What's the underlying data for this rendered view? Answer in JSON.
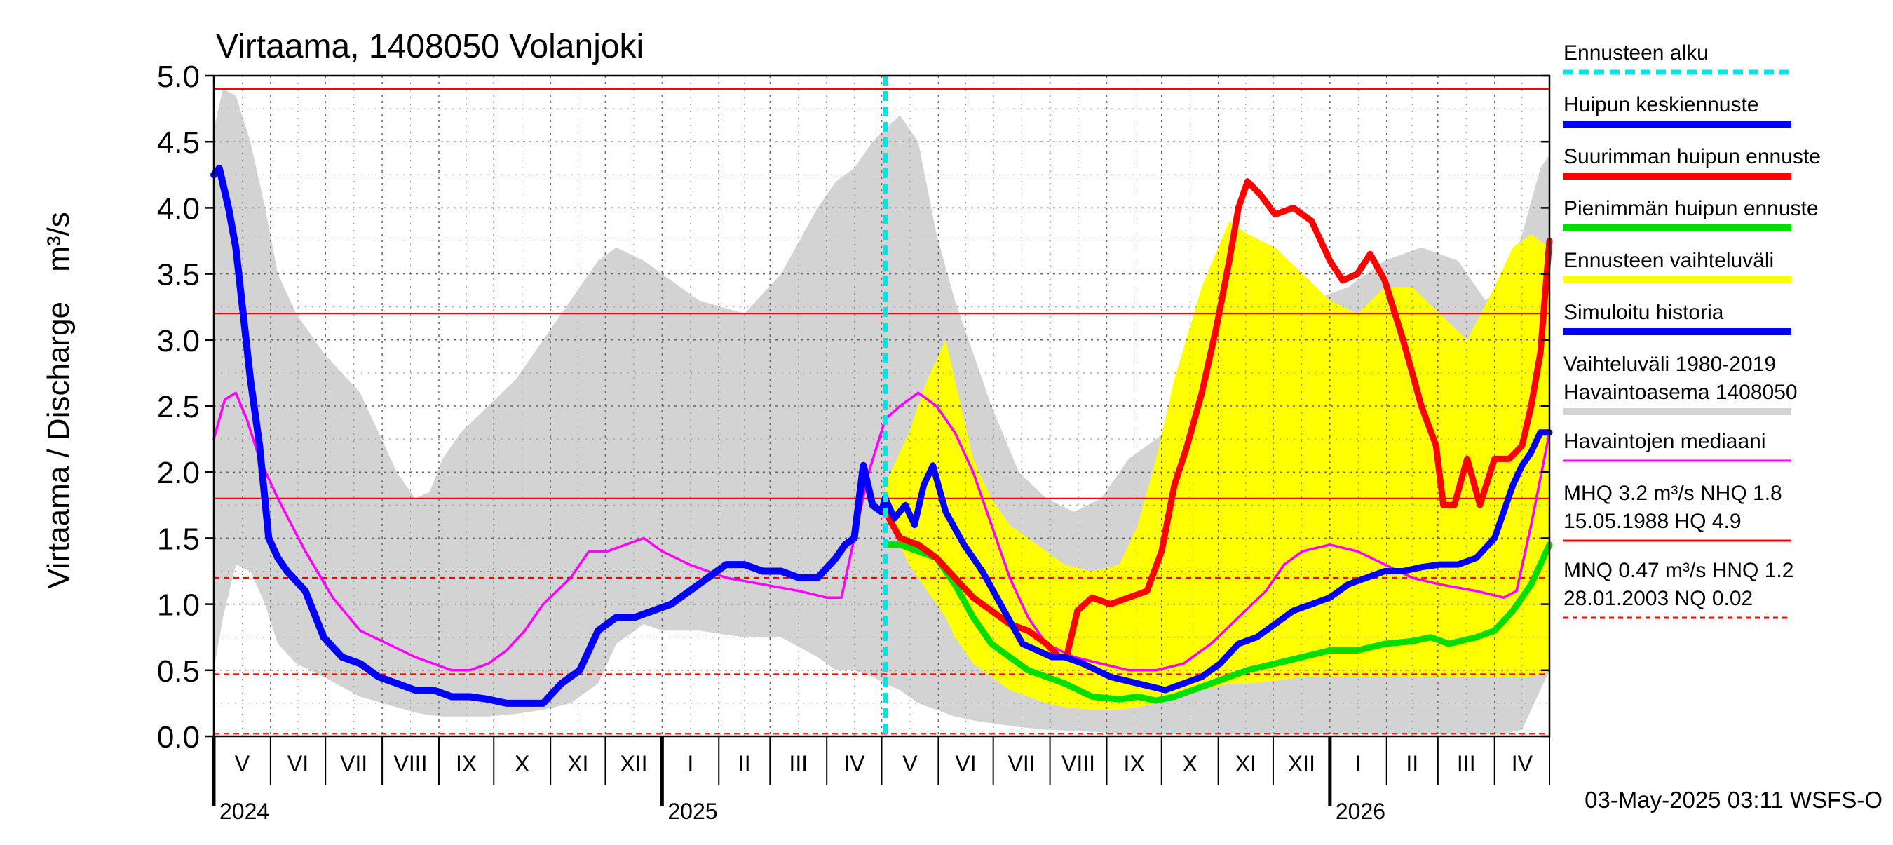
{
  "chart_data": {
    "type": "line",
    "title": "Virtaama, 1408050 Volanjoki",
    "ylabel": "Virtaama / Discharge",
    "yunit": "m³/s",
    "ylim": [
      0,
      5
    ],
    "y_ticks": [
      "0.0",
      "0.5",
      "1.0",
      "1.5",
      "2.0",
      "2.5",
      "3.0",
      "3.5",
      "4.0",
      "4.5",
      "5.0"
    ],
    "x_range_days": [
      0,
      730
    ],
    "months": [
      {
        "label": "V",
        "start": 0,
        "end": 31
      },
      {
        "label": "VI",
        "start": 31,
        "end": 61
      },
      {
        "label": "VII",
        "start": 61,
        "end": 92
      },
      {
        "label": "VIII",
        "start": 92,
        "end": 123
      },
      {
        "label": "IX",
        "start": 123,
        "end": 153
      },
      {
        "label": "X",
        "start": 153,
        "end": 184
      },
      {
        "label": "XI",
        "start": 184,
        "end": 214
      },
      {
        "label": "XII",
        "start": 214,
        "end": 245
      },
      {
        "label": "I",
        "start": 245,
        "end": 276
      },
      {
        "label": "II",
        "start": 276,
        "end": 304
      },
      {
        "label": "III",
        "start": 304,
        "end": 335
      },
      {
        "label": "IV",
        "start": 335,
        "end": 365
      },
      {
        "label": "V",
        "start": 365,
        "end": 396
      },
      {
        "label": "VI",
        "start": 396,
        "end": 426
      },
      {
        "label": "VII",
        "start": 426,
        "end": 457
      },
      {
        "label": "VIII",
        "start": 457,
        "end": 488
      },
      {
        "label": "IX",
        "start": 488,
        "end": 518
      },
      {
        "label": "X",
        "start": 518,
        "end": 549
      },
      {
        "label": "XI",
        "start": 549,
        "end": 579
      },
      {
        "label": "XII",
        "start": 579,
        "end": 610
      },
      {
        "label": "I",
        "start": 610,
        "end": 641
      },
      {
        "label": "II",
        "start": 641,
        "end": 669
      },
      {
        "label": "III",
        "start": 669,
        "end": 700
      },
      {
        "label": "IV",
        "start": 700,
        "end": 730
      }
    ],
    "years": [
      {
        "label": "2024",
        "day": 0
      },
      {
        "label": "2025",
        "day": 245
      },
      {
        "label": "2026",
        "day": 610
      }
    ],
    "forecast_start_day": 367,
    "reference_lines": [
      {
        "name": "HQ",
        "value": 4.9,
        "style": "solid"
      },
      {
        "name": "MHQ",
        "value": 3.2,
        "style": "solid"
      },
      {
        "name": "NHQ",
        "value": 1.8,
        "style": "solid"
      },
      {
        "name": "HNQ",
        "value": 1.2,
        "style": "dashed"
      },
      {
        "name": "MNQ",
        "value": 0.47,
        "style": "dashed"
      },
      {
        "name": "NQ",
        "value": 0.02,
        "style": "dashed"
      }
    ],
    "colors": {
      "historical_range": "#d3d3d3",
      "forecast_range": "#ffff00",
      "simulated": "#0000ff",
      "mean_peak": "#0000ff",
      "max_peak": "#ff0000",
      "min_peak": "#00dd00",
      "median": "#ff00ff",
      "forecast_start": "#00e5e5",
      "reference": "#ff0000"
    },
    "series": [
      {
        "name": "Vaihteluväli 1980-2019",
        "role": "historical_range",
        "x": [
          0,
          5,
          12,
          20,
          28,
          35,
          45,
          60,
          80,
          100,
          110,
          118,
          125,
          135,
          150,
          165,
          180,
          195,
          210,
          220,
          235,
          245,
          265,
          290,
          310,
          330,
          340,
          350,
          360,
          367,
          375,
          385,
          395,
          405,
          415,
          425,
          440,
          455,
          470,
          485,
          500,
          520,
          540,
          560,
          580,
          600,
          620,
          640,
          660,
          680,
          695,
          705,
          715,
          725,
          730
        ],
        "upper": [
          4.6,
          4.9,
          4.85,
          4.5,
          4.0,
          3.5,
          3.2,
          2.9,
          2.6,
          2.0,
          1.8,
          1.85,
          2.1,
          2.3,
          2.5,
          2.7,
          3.0,
          3.3,
          3.6,
          3.7,
          3.6,
          3.5,
          3.3,
          3.2,
          3.5,
          4.0,
          4.2,
          4.3,
          4.5,
          4.6,
          4.7,
          4.5,
          3.8,
          3.3,
          2.9,
          2.5,
          2.0,
          1.8,
          1.7,
          1.8,
          2.1,
          2.3,
          2.5,
          2.7,
          3.0,
          3.3,
          3.4,
          3.6,
          3.7,
          3.6,
          3.3,
          3.4,
          3.8,
          4.3,
          4.4
        ],
        "lower": [
          0.5,
          0.9,
          1.3,
          1.25,
          1.0,
          0.7,
          0.55,
          0.45,
          0.3,
          0.22,
          0.18,
          0.16,
          0.15,
          0.15,
          0.15,
          0.17,
          0.2,
          0.25,
          0.4,
          0.7,
          0.85,
          0.8,
          0.8,
          0.75,
          0.75,
          0.6,
          0.5,
          0.5,
          0.45,
          0.4,
          0.35,
          0.25,
          0.2,
          0.15,
          0.12,
          0.1,
          0.07,
          0.05,
          0.04,
          0.03,
          0.02,
          0.02,
          0.02,
          0.02,
          0.02,
          0.02,
          0.02,
          0.02,
          0.02,
          0.02,
          0.02,
          0.02,
          0.05,
          0.35,
          0.5
        ]
      },
      {
        "name": "Ennusteen vaihteluväli",
        "role": "forecast_range",
        "x": [
          367,
          370,
          380,
          390,
          400,
          405,
          415,
          425,
          435,
          445,
          455,
          465,
          480,
          495,
          505,
          515,
          525,
          540,
          555,
          565,
          580,
          595,
          610,
          625,
          640,
          655,
          670,
          685,
          700,
          710,
          720,
          730
        ],
        "upper": [
          1.9,
          2.0,
          2.3,
          2.7,
          3.0,
          2.7,
          2.1,
          1.8,
          1.6,
          1.5,
          1.4,
          1.3,
          1.25,
          1.3,
          1.6,
          2.1,
          2.7,
          3.4,
          3.9,
          3.8,
          3.7,
          3.5,
          3.3,
          3.2,
          3.4,
          3.4,
          3.2,
          3.0,
          3.4,
          3.7,
          3.8,
          3.7
        ],
        "lower": [
          1.7,
          1.6,
          1.3,
          1.1,
          0.9,
          0.75,
          0.55,
          0.45,
          0.35,
          0.3,
          0.25,
          0.22,
          0.2,
          0.2,
          0.22,
          0.25,
          0.3,
          0.35,
          0.4,
          0.4,
          0.42,
          0.45,
          0.45,
          0.45,
          0.45,
          0.45,
          0.45,
          0.45,
          0.45,
          0.45,
          0.45,
          0.5
        ]
      },
      {
        "name": "Havaintojen mediaani",
        "role": "median",
        "x": [
          0,
          6,
          12,
          18,
          25,
          35,
          50,
          65,
          80,
          95,
          110,
          120,
          130,
          140,
          150,
          160,
          170,
          180,
          195,
          205,
          215,
          225,
          235,
          245,
          260,
          280,
          300,
          320,
          335,
          343,
          350,
          358,
          367,
          375,
          385,
          395,
          405,
          415,
          425,
          435,
          445,
          455,
          470,
          485,
          500,
          515,
          530,
          545,
          560,
          575,
          585,
          595,
          610,
          625,
          640,
          655,
          670,
          690,
          705,
          712,
          720,
          730
        ],
        "values": [
          2.25,
          2.55,
          2.6,
          2.4,
          2.1,
          1.8,
          1.4,
          1.05,
          0.8,
          0.7,
          0.6,
          0.55,
          0.5,
          0.5,
          0.55,
          0.65,
          0.8,
          1.0,
          1.2,
          1.4,
          1.4,
          1.45,
          1.5,
          1.4,
          1.3,
          1.2,
          1.15,
          1.1,
          1.05,
          1.05,
          1.5,
          2.0,
          2.4,
          2.5,
          2.6,
          2.5,
          2.3,
          2.0,
          1.6,
          1.2,
          0.9,
          0.7,
          0.6,
          0.55,
          0.5,
          0.5,
          0.55,
          0.7,
          0.9,
          1.1,
          1.3,
          1.4,
          1.45,
          1.4,
          1.3,
          1.2,
          1.15,
          1.1,
          1.05,
          1.1,
          1.6,
          2.3
        ]
      },
      {
        "name": "Simuloitu historia",
        "role": "simulated",
        "x": [
          0,
          3,
          8,
          12,
          16,
          20,
          25,
          30,
          35,
          40,
          50,
          60,
          70,
          80,
          90,
          100,
          110,
          120,
          130,
          140,
          150,
          160,
          170,
          180,
          190,
          200,
          210,
          220,
          230,
          240,
          250,
          260,
          270,
          280,
          290,
          300,
          310,
          320,
          330,
          340,
          345,
          350,
          355,
          360,
          365,
          367
        ],
        "values": [
          4.25,
          4.3,
          4.0,
          3.7,
          3.2,
          2.7,
          2.2,
          1.5,
          1.35,
          1.25,
          1.1,
          0.75,
          0.6,
          0.55,
          0.45,
          0.4,
          0.35,
          0.35,
          0.3,
          0.3,
          0.28,
          0.25,
          0.25,
          0.25,
          0.4,
          0.5,
          0.8,
          0.9,
          0.9,
          0.95,
          1.0,
          1.1,
          1.2,
          1.3,
          1.3,
          1.25,
          1.25,
          1.2,
          1.2,
          1.35,
          1.45,
          1.5,
          2.05,
          1.75,
          1.7,
          1.8
        ]
      },
      {
        "name": "Huipun keskiennuste",
        "role": "mean_peak",
        "x": [
          367,
          372,
          378,
          383,
          388,
          393,
          400,
          410,
          420,
          428,
          436,
          442,
          450,
          458,
          465,
          475,
          490,
          505,
          520,
          530,
          540,
          550,
          560,
          570,
          580,
          590,
          600,
          610,
          620,
          630,
          640,
          650,
          660,
          670,
          680,
          690,
          700,
          705,
          710,
          715,
          720,
          725,
          730
        ],
        "values": [
          1.8,
          1.65,
          1.75,
          1.6,
          1.9,
          2.05,
          1.7,
          1.45,
          1.25,
          1.05,
          0.85,
          0.7,
          0.65,
          0.6,
          0.6,
          0.55,
          0.45,
          0.4,
          0.35,
          0.4,
          0.45,
          0.55,
          0.7,
          0.75,
          0.85,
          0.95,
          1.0,
          1.05,
          1.15,
          1.2,
          1.25,
          1.25,
          1.28,
          1.3,
          1.3,
          1.35,
          1.5,
          1.7,
          1.9,
          2.05,
          2.15,
          2.3,
          2.3
        ]
      },
      {
        "name": "Suurimman huipun ennuste",
        "role": "max_peak",
        "x": [
          367,
          375,
          385,
          395,
          405,
          415,
          425,
          435,
          445,
          455,
          462,
          466,
          472,
          480,
          490,
          500,
          510,
          518,
          525,
          532,
          540,
          548,
          555,
          560,
          565,
          572,
          580,
          590,
          600,
          605,
          610,
          617,
          625,
          632,
          640,
          650,
          660,
          668,
          672,
          678,
          685,
          692,
          700,
          708,
          715,
          720,
          725,
          730
        ],
        "values": [
          1.7,
          1.5,
          1.45,
          1.35,
          1.2,
          1.05,
          0.95,
          0.85,
          0.8,
          0.7,
          0.6,
          0.6,
          0.95,
          1.05,
          1.0,
          1.05,
          1.1,
          1.4,
          1.9,
          2.2,
          2.6,
          3.1,
          3.6,
          4.0,
          4.2,
          4.1,
          3.95,
          4.0,
          3.9,
          3.75,
          3.6,
          3.45,
          3.5,
          3.65,
          3.45,
          3.0,
          2.5,
          2.2,
          1.75,
          1.75,
          2.1,
          1.75,
          2.1,
          2.1,
          2.2,
          2.5,
          2.9,
          3.75
        ]
      },
      {
        "name": "Pienimmän huipun ennuste",
        "role": "min_peak",
        "x": [
          367,
          375,
          385,
          395,
          405,
          415,
          425,
          435,
          445,
          455,
          465,
          480,
          495,
          505,
          515,
          525,
          535,
          545,
          555,
          565,
          580,
          595,
          610,
          625,
          640,
          655,
          665,
          675,
          690,
          700,
          710,
          720,
          730
        ],
        "values": [
          1.45,
          1.45,
          1.4,
          1.35,
          1.15,
          0.9,
          0.7,
          0.6,
          0.5,
          0.45,
          0.4,
          0.3,
          0.28,
          0.3,
          0.27,
          0.3,
          0.35,
          0.4,
          0.45,
          0.5,
          0.55,
          0.6,
          0.65,
          0.65,
          0.7,
          0.72,
          0.75,
          0.7,
          0.75,
          0.8,
          0.95,
          1.15,
          1.45
        ]
      }
    ],
    "legend": [
      {
        "text": "Ennusteen alku",
        "swatch": "#00e5e5",
        "style": "dashed"
      },
      {
        "text": "Huipun keskiennuste",
        "swatch": "#0000ff",
        "style": "solid"
      },
      {
        "text": "Suurimman huipun ennuste",
        "swatch": "#ff0000",
        "style": "solid"
      },
      {
        "text": "Pienimmän huipun ennuste",
        "swatch": "#00dd00",
        "style": "solid"
      },
      {
        "text": "Ennusteen vaihteluväli",
        "swatch": "#ffff00",
        "style": "solid"
      },
      {
        "text": "Simuloitu historia",
        "swatch": "#0000ff",
        "style": "solid"
      },
      {
        "text": "Vaihteluväli 1980-2019\n Havaintoasema 1408050",
        "swatch": "#d3d3d3",
        "style": "solid"
      },
      {
        "text": "Havaintojen mediaani",
        "swatch": "#ff00ff",
        "style": "solid"
      },
      {
        "text": "MHQ  3.2 m³/s NHQ  1.8\n15.05.1988 HQ  4.9",
        "swatch": "#ff0000",
        "style": "solid"
      },
      {
        "text": "MNQ 0.47 m³/s HNQ  1.2\n28.01.2003 NQ 0.02",
        "swatch": "#ff0000",
        "style": "dashed"
      }
    ],
    "footer": "03-May-2025 03:11 WSFS-O"
  }
}
